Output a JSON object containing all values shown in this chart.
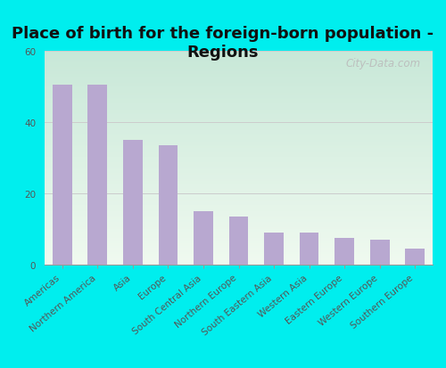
{
  "title": "Place of birth for the foreign-born population -\nRegions",
  "categories": [
    "Americas",
    "Northern America",
    "Asia",
    "Europe",
    "South Central Asia",
    "Northern Europe",
    "South Eastern Asia",
    "Western Asia",
    "Eastern Europe",
    "Western Europe",
    "Southern Europe"
  ],
  "values": [
    50.5,
    50.5,
    35.0,
    33.5,
    15.0,
    13.5,
    9.0,
    9.0,
    7.5,
    7.0,
    4.5
  ],
  "bar_color": "#b8a8d0",
  "bg_top": "#c8e8d8",
  "bg_bottom": "#f0faf0",
  "outer_bg": "#00eeee",
  "ylim": [
    0,
    60
  ],
  "yticks": [
    0,
    20,
    40,
    60
  ],
  "title_fontsize": 13,
  "tick_fontsize": 7.5,
  "bar_width": 0.55,
  "watermark": "City-Data.com"
}
